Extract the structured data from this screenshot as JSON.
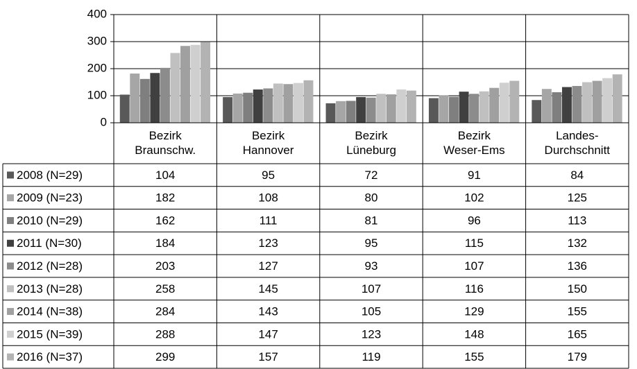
{
  "chart_data": {
    "type": "bar",
    "categories": [
      "Bezirk\nBraunschw.",
      "Bezirk\nHannover",
      "Bezirk\nLüneburg",
      "Bezirk\nWeser-Ems",
      "Landes-\nDurchschnitt"
    ],
    "series": [
      {
        "name": "2008 (N=29)",
        "color": "#595959",
        "values": [
          104,
          95,
          72,
          91,
          84
        ]
      },
      {
        "name": "2009 (N=23)",
        "color": "#a6a6a6",
        "values": [
          182,
          108,
          80,
          102,
          125
        ]
      },
      {
        "name": "2010 (N=29)",
        "color": "#7f7f7f",
        "values": [
          162,
          111,
          81,
          96,
          113
        ]
      },
      {
        "name": "2011 (N=30)",
        "color": "#404040",
        "values": [
          184,
          123,
          95,
          115,
          132
        ]
      },
      {
        "name": "2012 (N=28)",
        "color": "#8c8c8c",
        "values": [
          203,
          127,
          93,
          107,
          136
        ]
      },
      {
        "name": "2013 (N=28)",
        "color": "#c0c0c0",
        "values": [
          258,
          145,
          107,
          116,
          150
        ]
      },
      {
        "name": "2014 (N=38)",
        "color": "#a0a0a0",
        "values": [
          284,
          143,
          105,
          129,
          155
        ]
      },
      {
        "name": "2015 (N=39)",
        "color": "#cfcfcf",
        "values": [
          288,
          147,
          123,
          148,
          165
        ]
      },
      {
        "name": "2016 (N=37)",
        "color": "#b3b3b3",
        "values": [
          299,
          157,
          119,
          155,
          179
        ]
      }
    ],
    "ylim": [
      0,
      400
    ],
    "yticks": [
      0,
      100,
      200,
      300,
      400
    ],
    "grid": true
  }
}
